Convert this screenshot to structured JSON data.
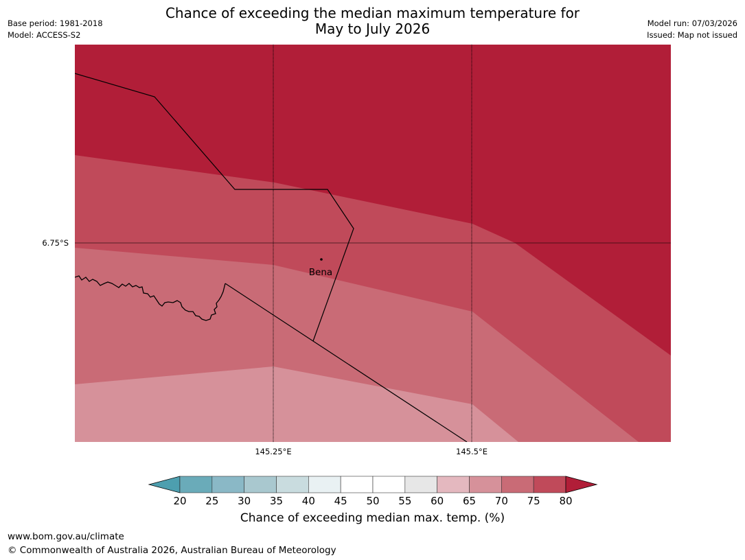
{
  "header": {
    "title_line1": "Chance of exceeding the median maximum temperature for",
    "title_line2": "May to July 2026",
    "base_period": "Base period: 1981-2018",
    "model": "Model: ACCESS-S2",
    "model_run": "Model run: 07/03/2026",
    "issued": "Issued: Map not issued"
  },
  "map": {
    "lat_label": "6.75°S",
    "lon_labels": [
      "145.25°E",
      "145.5°E"
    ],
    "place_name": "Bena"
  },
  "colorbar": {
    "ticks": [
      "20",
      "25",
      "30",
      "35",
      "40",
      "45",
      "50",
      "55",
      "60",
      "65",
      "70",
      "75",
      "80"
    ],
    "colors": [
      "#6aabb9",
      "#8ab8c6",
      "#a9c8cf",
      "#c9dcdf",
      "#e9f1f3",
      "#ffffff",
      "#ffffff",
      "#e7e7e7",
      "#e4b8bf",
      "#d6919a",
      "#c96b76",
      "#c04a5a",
      "#b11e38"
    ],
    "low_color": "#4d9faf",
    "high_color": "#b11e38",
    "label": "Chance of exceeding median max. temp. (%)"
  },
  "zone_colors": {
    "over_80": "#b11e38",
    "75_80": "#c04a5a",
    "70_75": "#c96b76",
    "65_70": "#d6919a"
  },
  "footer": {
    "website": "www.bom.gov.au/climate",
    "copyright": "© Commonwealth of Australia 2026, Australian Bureau of Meteorology"
  }
}
